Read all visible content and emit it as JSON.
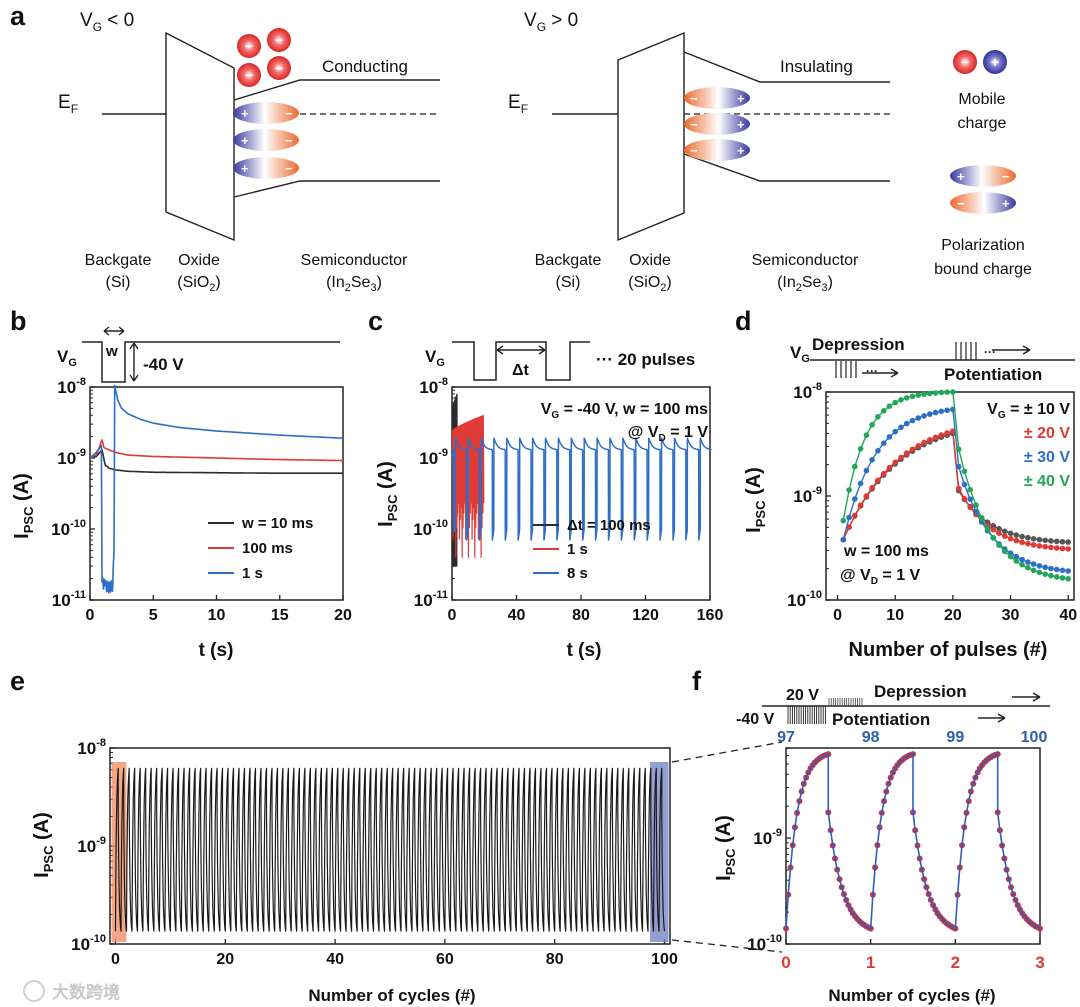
{
  "panel_labels": {
    "a": "a",
    "b": "b",
    "c": "c",
    "d": "d",
    "e": "e",
    "f": "f"
  },
  "colors": {
    "black": "#2b2b2b",
    "red": "#e03a36",
    "blue": "#2f6ec5",
    "green": "#22a65a",
    "gray": "#555555",
    "orange_box": "#f08a5d",
    "blue_box": "#6f7fc4",
    "mobile_neg": "#e53935",
    "mobile_pos": "#3c3ca8"
  },
  "panel_a": {
    "left": {
      "vg": "V",
      "vg_sub": "G",
      "vg_rel": " < 0",
      "state": "Conducting",
      "ef": "E",
      "ef_sub": "F",
      "backgate": "Backgate",
      "backgate_mat": "(Si)",
      "oxide": "Oxide",
      "oxide_mat": "(SiO",
      "oxide_sub": "2",
      "oxide_close": ")",
      "semi": "Semiconductor",
      "semi_mat": "(In",
      "semi_sub1": "2",
      "semi_mid": "Se",
      "semi_sub2": "3",
      "semi_close": ")"
    },
    "right": {
      "vg": "V",
      "vg_sub": "G",
      "vg_rel": " > 0",
      "state": "Insulating",
      "ef": "E",
      "ef_sub": "F",
      "backgate": "Backgate",
      "backgate_mat": "(Si)",
      "oxide": "Oxide",
      "oxide_mat": "(SiO",
      "oxide_sub": "2",
      "oxide_close": ")",
      "semi": "Semiconductor",
      "semi_mat": "(In",
      "semi_sub1": "2",
      "semi_mid": "Se",
      "semi_sub2": "3",
      "semi_close": ")"
    },
    "legend": {
      "mobile_line1": "Mobile",
      "mobile_line2": "charge",
      "polar_line1": "Polarization",
      "polar_line2": "bound charge",
      "minus": "−",
      "plus": "+"
    }
  },
  "panel_b": {
    "vg": "V",
    "vg_sub": "G",
    "w": "w",
    "amp": "-40 V",
    "ylabel": "I",
    "ylabel_sub": "PSC",
    "ylabel_unit": " (A)",
    "xlabel": "t (s)"
  },
  "panel_c": {
    "vg": "V",
    "vg_sub": "G",
    "dt": "Δt",
    "pulses": "··· 20 pulses",
    "ann_line1_a": "V",
    "ann_line1_sub": "G",
    "ann_line1_b": " = -40 V, w = 100 ms",
    "ann_line2_a": "@ V",
    "ann_line2_sub": "D",
    "ann_line2_b": " = 1 V",
    "ylabel": "I",
    "ylabel_sub": "PSC",
    "ylabel_unit": " (A)",
    "xlabel": "t (s)"
  },
  "panel_d": {
    "vg": "V",
    "vg_sub": "G",
    "depression": "Depression",
    "potentiation": "Potentiation",
    "legend_prefix_a": "V",
    "legend_prefix_sub": "G",
    "legend_prefix_b": " = ",
    "ann_line1": "w = 100 ms",
    "ann_line2_a": "@ V",
    "ann_line2_sub": "D",
    "ann_line2_b": " = 1 V",
    "ylabel": "I",
    "ylabel_sub": "PSC",
    "ylabel_unit": " (A)",
    "xlabel": "Number of pulses (#)"
  },
  "panel_e": {
    "ylabel": "I",
    "ylabel_sub": "PSC",
    "ylabel_unit": " (A)",
    "xlabel": "Number of cycles (#)"
  },
  "panel_f": {
    "v_high": "20 V",
    "v_low": "-40 V",
    "depression": "Depression",
    "potentiation": "Potentiation",
    "ylabel": "I",
    "ylabel_sub": "PSC",
    "ylabel_unit": " (A)",
    "xlabel": "Number of cycles (#)"
  },
  "watermark": "大数跨境",
  "chart_data": [
    {
      "id": "b",
      "type": "line",
      "xlim": [
        0,
        20
      ],
      "ylim_log10": [
        -11,
        -8
      ],
      "xticks": [
        0,
        5,
        10,
        15,
        20
      ],
      "yticks": [
        {
          "v": -8,
          "base": "10",
          "exp": "-8"
        },
        {
          "v": -9,
          "base": "10",
          "exp": "-9"
        },
        {
          "v": -10,
          "base": "10",
          "exp": "-10"
        },
        {
          "v": -11,
          "base": "10",
          "exp": "-11"
        }
      ],
      "legend_position": "bottom-right",
      "series": [
        {
          "name": "w = 10 ms",
          "color": "#2b2b2b",
          "x": [
            0,
            0.5,
            0.95,
            1.2,
            1.5,
            2,
            3,
            5,
            10,
            15,
            20
          ],
          "y": [
            1e-09,
            1.05e-09,
            1.3e-09,
            8e-10,
            7.2e-10,
            6.8e-10,
            6.5e-10,
            6.3e-10,
            6.2e-10,
            6.1e-10,
            6.1e-10
          ]
        },
        {
          "name": "100 ms",
          "color": "#e03a36",
          "x": [
            0,
            0.5,
            0.95,
            1.1,
            1.5,
            2,
            3,
            5,
            10,
            15,
            20
          ],
          "y": [
            1e-09,
            1.1e-09,
            1.8e-09,
            1.4e-09,
            1.3e-09,
            1.2e-09,
            1.1e-09,
            1.05e-09,
            1e-09,
            9.5e-10,
            9.2e-10
          ]
        },
        {
          "name": "1 s",
          "color": "#2f6ec5",
          "x": [
            0,
            0.5,
            0.9,
            0.95,
            1.2,
            1.5,
            1.8,
            1.9,
            1.95,
            2.2,
            2.5,
            3,
            4,
            5,
            7,
            10,
            15,
            20
          ],
          "y": [
            1e-09,
            1.2e-09,
            1.5e-09,
            1.8e-11,
            1.6e-11,
            1.5e-11,
            1.6e-11,
            5e-11,
            1.05e-08,
            6.5e-09,
            5e-09,
            4.2e-09,
            3.5e-09,
            3.1e-09,
            2.7e-09,
            2.4e-09,
            2.1e-09,
            1.9e-09
          ]
        }
      ]
    },
    {
      "id": "c",
      "type": "line",
      "xlim": [
        0,
        160
      ],
      "ylim_log10": [
        -11,
        -8
      ],
      "xticks": [
        0,
        40,
        80,
        120,
        160
      ],
      "yticks": [
        {
          "v": -8,
          "base": "10",
          "exp": "-8"
        },
        {
          "v": -9,
          "base": "10",
          "exp": "-9"
        },
        {
          "v": -10,
          "base": "10",
          "exp": "-10"
        },
        {
          "v": -11,
          "base": "10",
          "exp": "-11"
        }
      ],
      "legend_position": "bottom-right",
      "series": [
        {
          "name": "Δt = 100 ms",
          "color": "#2b2b2b",
          "pulse_period": 0.1,
          "pulses": 20,
          "start": 0.5,
          "peak_low": 5e-09,
          "peak_high": 8e-09,
          "trough": 3e-11
        },
        {
          "name": "1 s",
          "color": "#e03a36",
          "pulse_period": 1,
          "pulses": 20,
          "start": 0.5,
          "peak_low": 2.5e-09,
          "peak_high": 4e-09,
          "trough": 4e-11
        },
        {
          "name": "8 s",
          "color": "#2f6ec5",
          "pulse_period": 8,
          "pulses": 20,
          "start": 1,
          "baseline": 1.3e-09,
          "peak": 1.9e-09,
          "trough": 7e-11
        }
      ]
    },
    {
      "id": "d",
      "type": "line",
      "xlim": [
        -2,
        41
      ],
      "ylim_log10": [
        -10,
        -8
      ],
      "xticks": [
        0,
        10,
        20,
        30,
        40
      ],
      "yticks": [
        {
          "v": -8,
          "base": "10",
          "exp": "-8"
        },
        {
          "v": -9,
          "base": "10",
          "exp": "-9"
        },
        {
          "v": -10,
          "base": "10",
          "exp": "-10"
        }
      ],
      "legend_position": "top-right",
      "series": [
        {
          "name": "± 10 V",
          "color": "#555555",
          "pot_start": 3.8e-10,
          "pot_end": 4e-09,
          "dep_end": 3.6e-10,
          "k": 0.12
        },
        {
          "name": "± 20 V",
          "color": "#e03a36",
          "pot_start": 3.8e-10,
          "pot_end": 4.2e-09,
          "dep_end": 3.1e-10,
          "k": 0.12
        },
        {
          "name": "± 30 V",
          "color": "#2f6ec5",
          "pot_start": 3.8e-10,
          "pot_end": 6.8e-09,
          "dep_end": 1.9e-10,
          "k": 0.2
        },
        {
          "name": "± 40 V",
          "color": "#22a65a",
          "pot_start": 5.8e-10,
          "pot_end": 1e-08,
          "dep_end": 1.6e-10,
          "k": 0.3
        }
      ]
    },
    {
      "id": "e",
      "type": "line",
      "xlim": [
        -1,
        101
      ],
      "ylim_log10": [
        -10,
        -8
      ],
      "xticks": [
        0,
        20,
        40,
        60,
        80,
        100
      ],
      "yticks": [
        {
          "v": -8,
          "base": "10",
          "exp": "-8"
        },
        {
          "v": -9,
          "base": "10",
          "exp": "-9"
        },
        {
          "v": -10,
          "base": "10",
          "exp": "-10"
        }
      ],
      "cycles": 100,
      "high": 6.2e-09,
      "low": 1.35e-10,
      "highlight_ranges": [
        [
          0,
          2
        ],
        [
          97,
          100
        ]
      ]
    },
    {
      "id": "f",
      "type": "line",
      "xlim": [
        0,
        3
      ],
      "ylim_log10": [
        -10,
        -8.15
      ],
      "xticks": [
        0,
        1,
        2,
        3
      ],
      "top_ticks": [
        "97",
        "98",
        "99",
        "100"
      ],
      "yticks": [
        {
          "v": -9,
          "base": "10",
          "exp": "-9"
        },
        {
          "v": -10,
          "base": "10",
          "exp": "-10"
        }
      ],
      "cycles": 3,
      "high": 6.2e-09,
      "low": 1.4e-10,
      "points_per_half_cycle": 20
    }
  ]
}
